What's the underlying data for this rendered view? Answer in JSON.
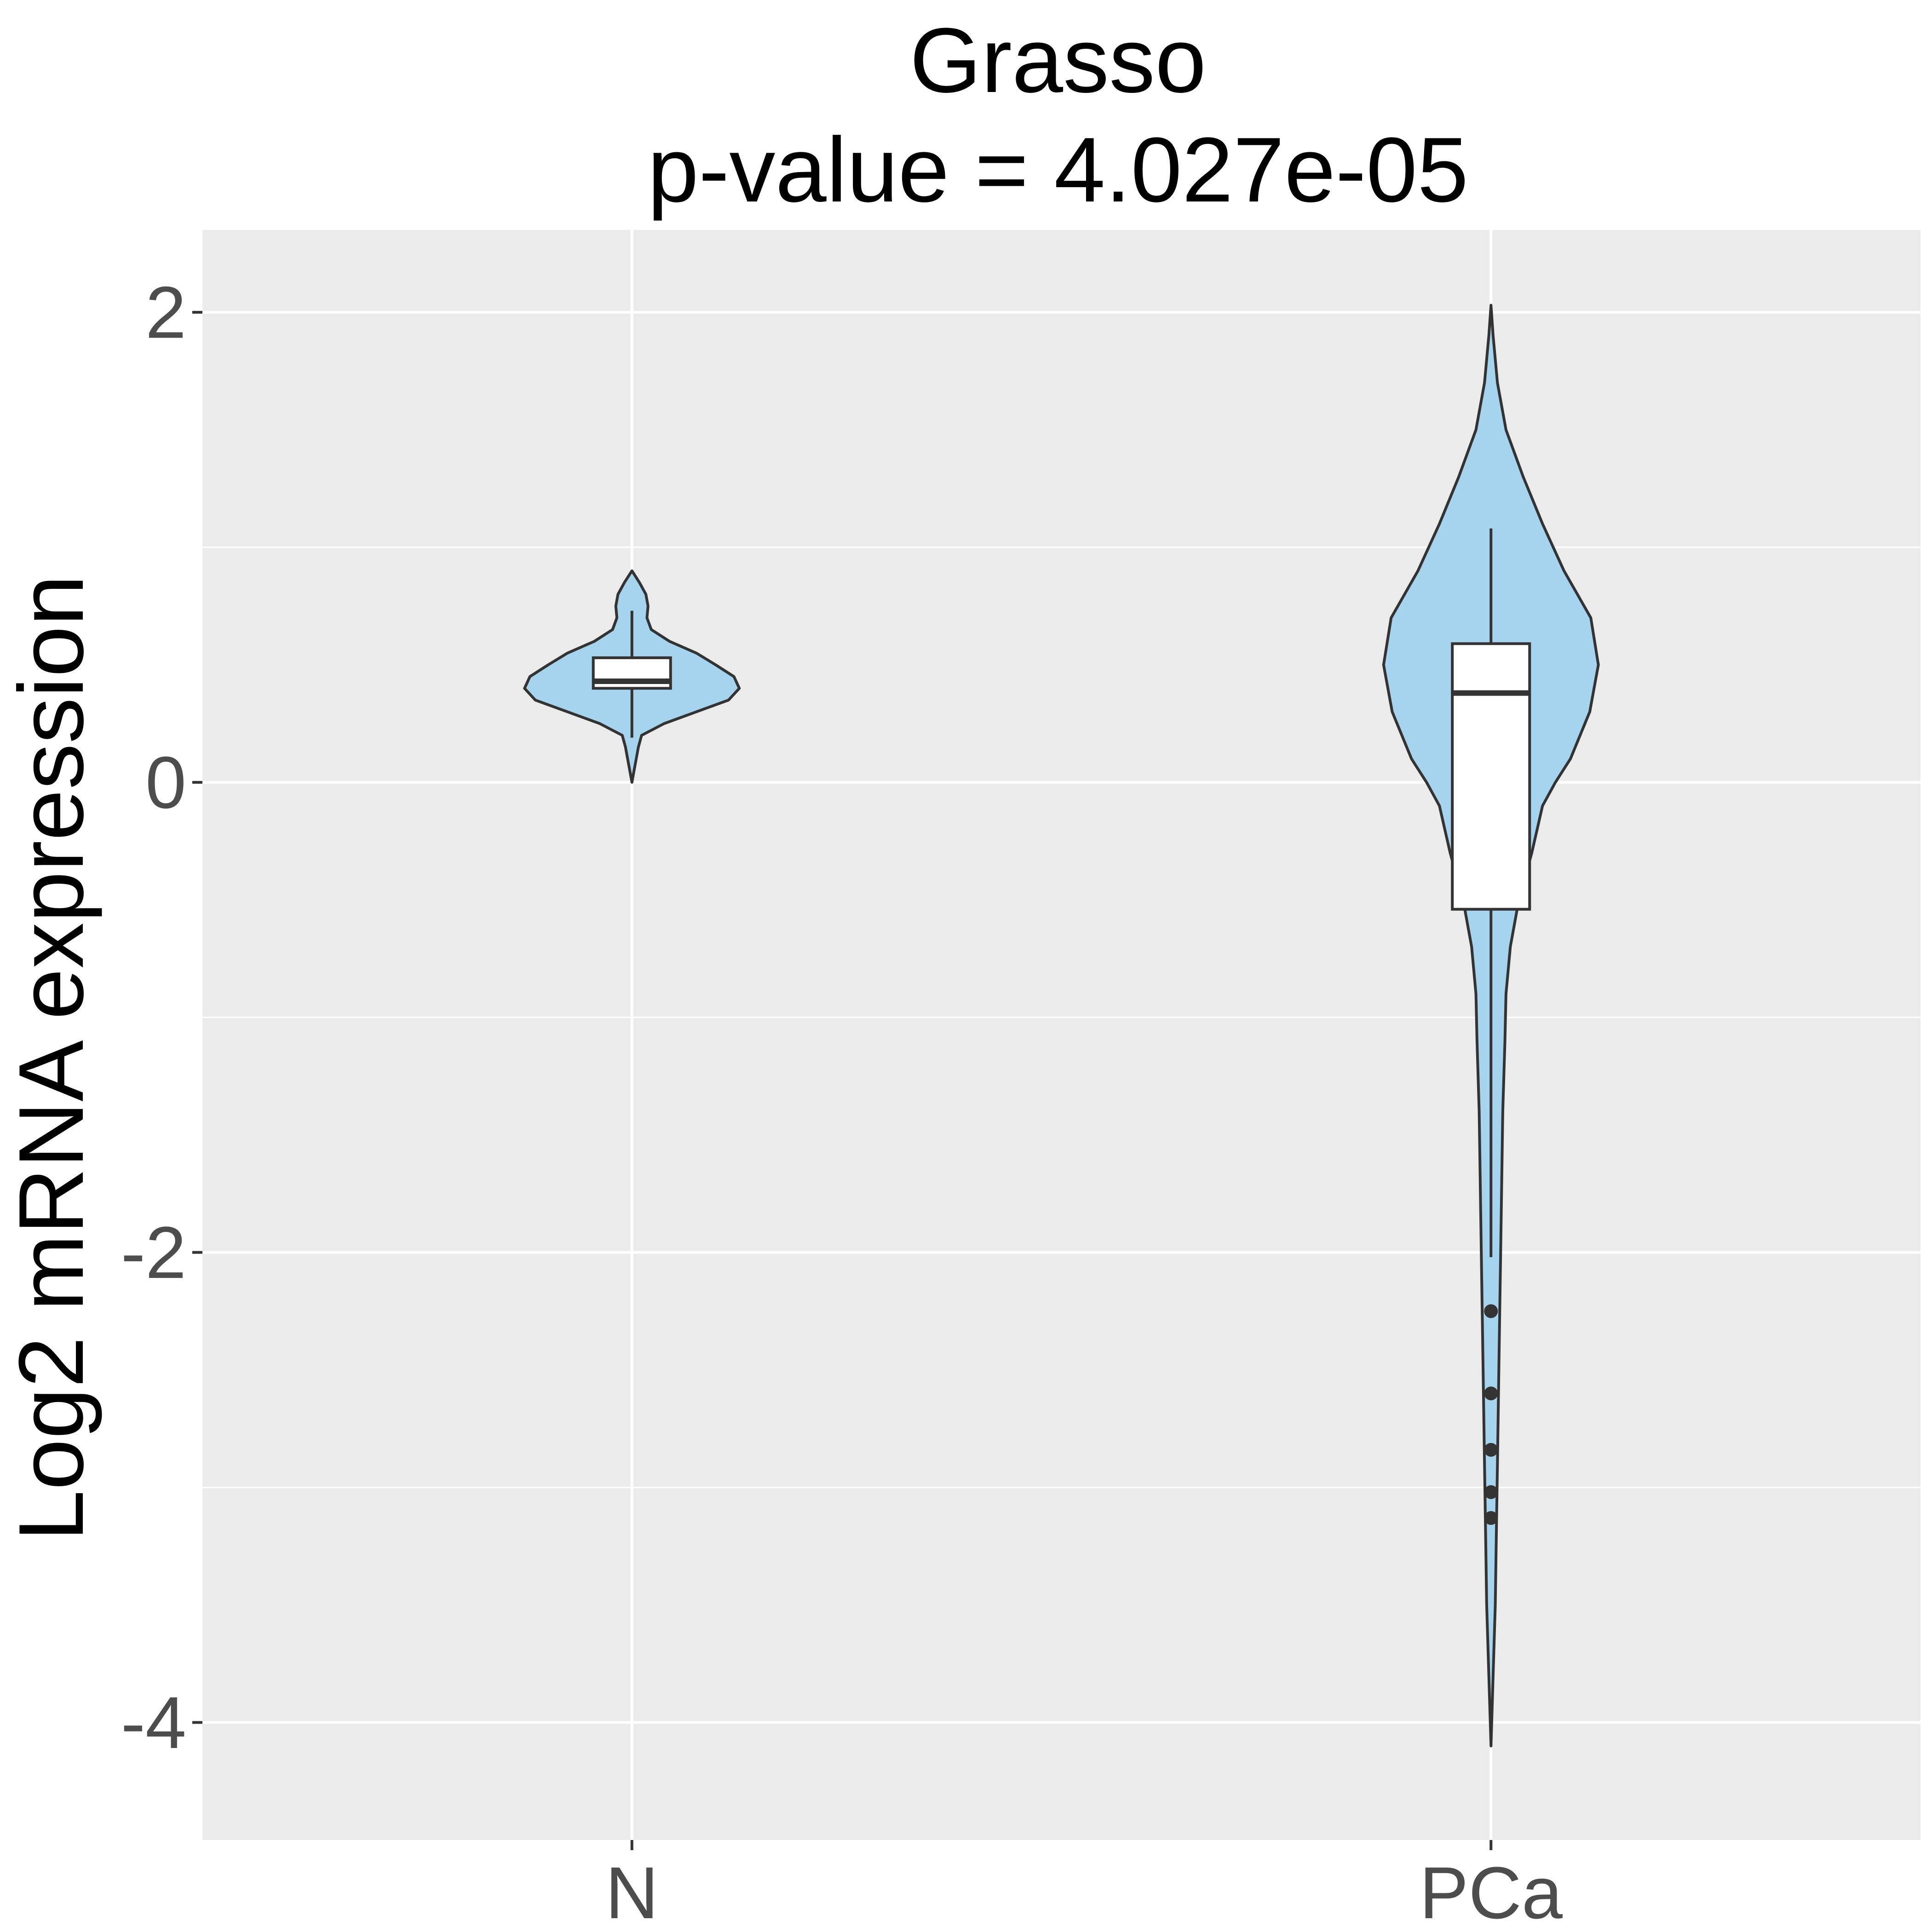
{
  "chart_data": {
    "type": "violin",
    "title": "Grasso",
    "subtitle": "p-value = 4.027e-05",
    "xlabel": "",
    "ylabel": "Log2 mRNA expression",
    "categories": [
      "N",
      "PCa"
    ],
    "ylim": [
      -4.5,
      2.35
    ],
    "yticks": [
      2,
      0,
      -2,
      -4
    ],
    "yticks_labels": [
      "2",
      "0",
      "-2",
      "-4"
    ],
    "grid": true,
    "legend": "none",
    "colors": {
      "panel": "#EBEBEB",
      "grid": "#FFFFFF",
      "violin_fill": "#A6D3EE",
      "outline": "#333333",
      "box_fill": "#FFFFFF",
      "title_text": "#000000",
      "tick_text": "#4D4D4D"
    },
    "groups": [
      {
        "name": "N",
        "box": {
          "q1": 0.4,
          "median": 0.43,
          "q3": 0.53,
          "whisker_low": 0.19,
          "whisker_high": 0.73
        },
        "outliers": [],
        "violin": {
          "min": 0.0,
          "max": 0.9,
          "density": [
            [
              0.0,
              0.0
            ],
            [
              0.05,
              0.02
            ],
            [
              0.1,
              0.04
            ],
            [
              0.15,
              0.06
            ],
            [
              0.2,
              0.09
            ],
            [
              0.25,
              0.3
            ],
            [
              0.3,
              0.6
            ],
            [
              0.35,
              0.9
            ],
            [
              0.4,
              1.0
            ],
            [
              0.45,
              0.95
            ],
            [
              0.5,
              0.78
            ],
            [
              0.55,
              0.6
            ],
            [
              0.6,
              0.35
            ],
            [
              0.65,
              0.18
            ],
            [
              0.7,
              0.14
            ],
            [
              0.75,
              0.15
            ],
            [
              0.8,
              0.13
            ],
            [
              0.85,
              0.07
            ],
            [
              0.9,
              0.0
            ]
          ]
        }
      },
      {
        "name": "PCa",
        "box": {
          "q1": -0.54,
          "median": 0.38,
          "q3": 0.59,
          "whisker_low": -2.02,
          "whisker_high": 1.08
        },
        "outliers": [
          -2.25,
          -2.6,
          -2.84,
          -3.02,
          -3.13
        ],
        "violin": {
          "min": -4.1,
          "max": 2.03,
          "density": [
            [
              -4.1,
              0.0
            ],
            [
              -3.8,
              0.02
            ],
            [
              -3.5,
              0.04
            ],
            [
              -3.2,
              0.05
            ],
            [
              -2.9,
              0.06
            ],
            [
              -2.6,
              0.07
            ],
            [
              -2.3,
              0.08
            ],
            [
              -2.0,
              0.09
            ],
            [
              -1.7,
              0.1
            ],
            [
              -1.4,
              0.11
            ],
            [
              -1.1,
              0.13
            ],
            [
              -0.9,
              0.14
            ],
            [
              -0.7,
              0.18
            ],
            [
              -0.5,
              0.26
            ],
            [
              -0.3,
              0.38
            ],
            [
              -0.1,
              0.48
            ],
            [
              0.0,
              0.6
            ],
            [
              0.1,
              0.74
            ],
            [
              0.3,
              0.92
            ],
            [
              0.5,
              1.0
            ],
            [
              0.7,
              0.93
            ],
            [
              0.9,
              0.68
            ],
            [
              1.1,
              0.48
            ],
            [
              1.3,
              0.3
            ],
            [
              1.5,
              0.14
            ],
            [
              1.7,
              0.06
            ],
            [
              1.9,
              0.02
            ],
            [
              2.03,
              0.0
            ]
          ]
        }
      }
    ]
  }
}
